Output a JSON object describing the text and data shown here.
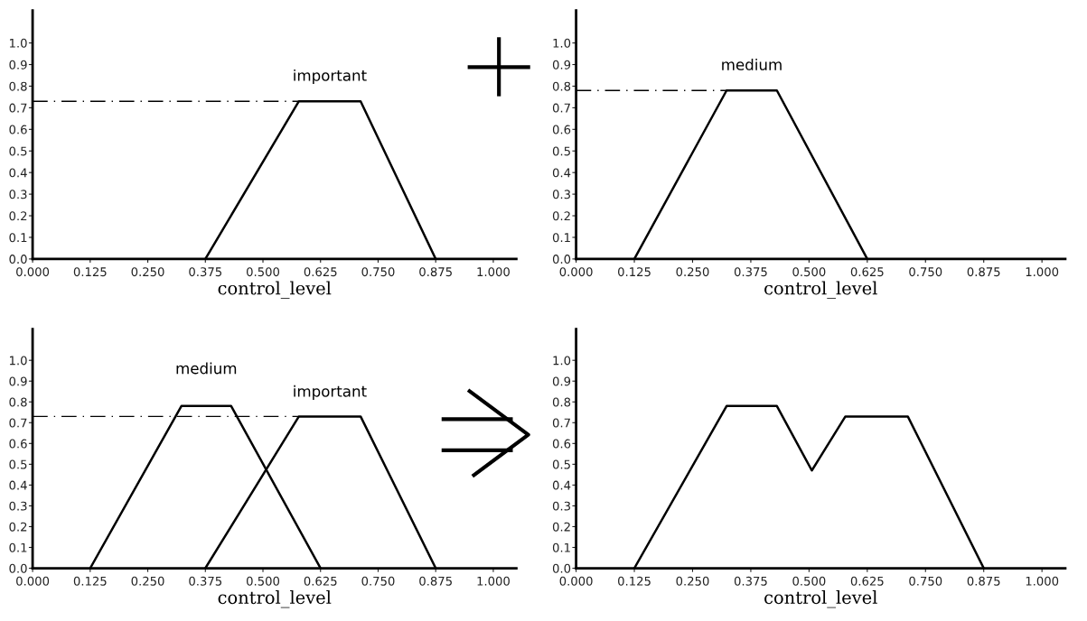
{
  "chart_data": [
    {
      "type": "line",
      "xlabel": "control_level",
      "xlim": [
        0,
        1.05
      ],
      "ylim": [
        0,
        1.15
      ],
      "xticks": [
        {
          "value": 0,
          "label": "0.000"
        },
        {
          "value": 0.125,
          "label": "0.125"
        },
        {
          "value": 0.25,
          "label": "0.250"
        },
        {
          "value": 0.375,
          "label": "0.375"
        },
        {
          "value": 0.5,
          "label": "0.500"
        },
        {
          "value": 0.625,
          "label": "0.625"
        },
        {
          "value": 0.75,
          "label": "0.750"
        },
        {
          "value": 0.875,
          "label": "0.875"
        },
        {
          "value": 1,
          "label": "1.000"
        }
      ],
      "yticks": [
        {
          "value": 0,
          "label": "0.0"
        },
        {
          "value": 0.1,
          "label": "0.1"
        },
        {
          "value": 0.2,
          "label": "0.2"
        },
        {
          "value": 0.3,
          "label": "0.3"
        },
        {
          "value": 0.4,
          "label": "0.4"
        },
        {
          "value": 0.5,
          "label": "0.5"
        },
        {
          "value": 0.6,
          "label": "0.6"
        },
        {
          "value": 0.7,
          "label": "0.7"
        },
        {
          "value": 0.8,
          "label": "0.8"
        },
        {
          "value": 0.9,
          "label": "0.9"
        },
        {
          "value": 1,
          "label": "1.0"
        }
      ],
      "series": [
        {
          "name": "important",
          "color": "#000000",
          "x": [
            0.375,
            0.578,
            0.712,
            0.875
          ],
          "values": [
            0,
            0.73,
            0.73,
            0
          ]
        }
      ],
      "ref_lines": [
        {
          "axis": "y",
          "value": 0.73,
          "color": "#000000",
          "line_style": "dashdot"
        }
      ],
      "grid": false
    },
    {
      "type": "line",
      "xlabel": "control_level",
      "xlim": [
        0,
        1.05
      ],
      "ylim": [
        0,
        1.15
      ],
      "xticks": [
        {
          "value": 0,
          "label": "0.000"
        },
        {
          "value": 0.125,
          "label": "0.125"
        },
        {
          "value": 0.25,
          "label": "0.250"
        },
        {
          "value": 0.375,
          "label": "0.375"
        },
        {
          "value": 0.5,
          "label": "0.500"
        },
        {
          "value": 0.625,
          "label": "0.625"
        },
        {
          "value": 0.75,
          "label": "0.750"
        },
        {
          "value": 0.875,
          "label": "0.875"
        },
        {
          "value": 1,
          "label": "1.000"
        }
      ],
      "yticks": [
        {
          "value": 0,
          "label": "0.0"
        },
        {
          "value": 0.1,
          "label": "0.1"
        },
        {
          "value": 0.2,
          "label": "0.2"
        },
        {
          "value": 0.3,
          "label": "0.3"
        },
        {
          "value": 0.4,
          "label": "0.4"
        },
        {
          "value": 0.5,
          "label": "0.5"
        },
        {
          "value": 0.6,
          "label": "0.6"
        },
        {
          "value": 0.7,
          "label": "0.7"
        },
        {
          "value": 0.8,
          "label": "0.8"
        },
        {
          "value": 0.9,
          "label": "0.9"
        },
        {
          "value": 1,
          "label": "1.0"
        }
      ],
      "series": [
        {
          "name": "medium",
          "color": "#000000",
          "x": [
            0.125,
            0.323,
            0.431,
            0.625
          ],
          "values": [
            0,
            0.78,
            0.78,
            0
          ]
        }
      ],
      "ref_lines": [
        {
          "axis": "y",
          "value": 0.78,
          "color": "#000000",
          "line_style": "dashdot"
        }
      ],
      "grid": false
    },
    {
      "type": "line",
      "xlabel": "control_level",
      "xlim": [
        0,
        1.05
      ],
      "ylim": [
        0,
        1.15
      ],
      "xticks": [
        {
          "value": 0,
          "label": "0.000"
        },
        {
          "value": 0.125,
          "label": "0.125"
        },
        {
          "value": 0.25,
          "label": "0.250"
        },
        {
          "value": 0.375,
          "label": "0.375"
        },
        {
          "value": 0.5,
          "label": "0.500"
        },
        {
          "value": 0.625,
          "label": "0.625"
        },
        {
          "value": 0.75,
          "label": "0.750"
        },
        {
          "value": 0.875,
          "label": "0.875"
        },
        {
          "value": 1,
          "label": "1.000"
        }
      ],
      "yticks": [
        {
          "value": 0,
          "label": "0.0"
        },
        {
          "value": 0.1,
          "label": "0.1"
        },
        {
          "value": 0.2,
          "label": "0.2"
        },
        {
          "value": 0.3,
          "label": "0.3"
        },
        {
          "value": 0.4,
          "label": "0.4"
        },
        {
          "value": 0.5,
          "label": "0.5"
        },
        {
          "value": 0.6,
          "label": "0.6"
        },
        {
          "value": 0.7,
          "label": "0.7"
        },
        {
          "value": 0.8,
          "label": "0.8"
        },
        {
          "value": 0.9,
          "label": "0.9"
        },
        {
          "value": 1,
          "label": "1.0"
        }
      ],
      "series": [
        {
          "name": "medium",
          "color": "#000000",
          "x": [
            0.125,
            0.323,
            0.431,
            0.625
          ],
          "values": [
            0,
            0.78,
            0.78,
            0
          ]
        },
        {
          "name": "important",
          "color": "#000000",
          "x": [
            0.375,
            0.578,
            0.712,
            0.875
          ],
          "values": [
            0,
            0.73,
            0.73,
            0
          ]
        }
      ],
      "ref_lines": [
        {
          "axis": "y",
          "value": 0.73,
          "color": "#000000",
          "line_style": "dashdot"
        }
      ],
      "grid": false
    },
    {
      "type": "line",
      "xlabel": "control_level",
      "xlim": [
        0,
        1.05
      ],
      "ylim": [
        0,
        1.15
      ],
      "xticks": [
        {
          "value": 0,
          "label": "0.000"
        },
        {
          "value": 0.125,
          "label": "0.125"
        },
        {
          "value": 0.25,
          "label": "0.250"
        },
        {
          "value": 0.375,
          "label": "0.375"
        },
        {
          "value": 0.5,
          "label": "0.500"
        },
        {
          "value": 0.625,
          "label": "0.625"
        },
        {
          "value": 0.75,
          "label": "0.750"
        },
        {
          "value": 0.875,
          "label": "0.875"
        },
        {
          "value": 1,
          "label": "1.000"
        }
      ],
      "yticks": [
        {
          "value": 0,
          "label": "0.0"
        },
        {
          "value": 0.1,
          "label": "0.1"
        },
        {
          "value": 0.2,
          "label": "0.2"
        },
        {
          "value": 0.3,
          "label": "0.3"
        },
        {
          "value": 0.4,
          "label": "0.4"
        },
        {
          "value": 0.5,
          "label": "0.5"
        },
        {
          "value": 0.6,
          "label": "0.6"
        },
        {
          "value": 0.7,
          "label": "0.7"
        },
        {
          "value": 0.8,
          "label": "0.8"
        },
        {
          "value": 0.9,
          "label": "0.9"
        },
        {
          "value": 1,
          "label": "1.0"
        }
      ],
      "series": [
        {
          "color": "#000000",
          "x": [
            0.125,
            0.323,
            0.431,
            0.506,
            0.578,
            0.712,
            0.875
          ],
          "values": [
            0,
            0.78,
            0.78,
            0.47,
            0.73,
            0.73,
            0
          ]
        }
      ],
      "grid": false
    }
  ]
}
